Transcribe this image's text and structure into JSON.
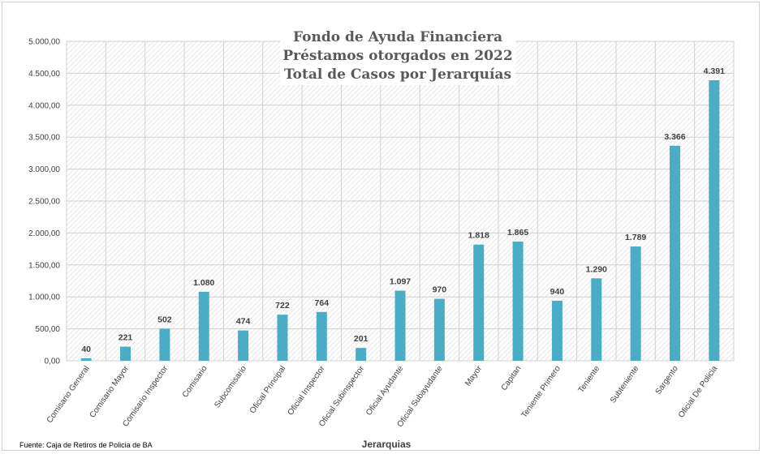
{
  "chart_data": {
    "type": "bar",
    "title_lines": [
      "Fondo de Ayuda Financiera",
      "Préstamos otorgados en 2022",
      "Total de Casos por Jerarquías"
    ],
    "xlabel": "Jerarquias",
    "ylabel": "",
    "source": "Fuente: Caja de Retiros de Policia de BA",
    "categories": [
      "Comisario General",
      "Comisario Mayor",
      "Comisario Inspector",
      "Comisario",
      "Subcomisario",
      "Oficial Principal",
      "Oficial Inspector",
      "Oficial Subinspector",
      "Oficial Ayudante",
      "Oficial Subayudante",
      "Mayor",
      "Capitan",
      "Teniente Primero",
      "Teniente",
      "Subteniente",
      "Sargento",
      "Oficial De Policia"
    ],
    "values": [
      40,
      221,
      502,
      1080,
      474,
      722,
      764,
      201,
      1097,
      970,
      1818,
      1865,
      940,
      1290,
      1789,
      3366,
      4391
    ],
    "value_labels": [
      "40",
      "221",
      "502",
      "1.080",
      "474",
      "722",
      "764",
      "201",
      "1.097",
      "970",
      "1.818",
      "1.865",
      "940",
      "1.290",
      "1.789",
      "3.366",
      "4.391"
    ],
    "ylim": [
      0,
      5000
    ],
    "yticks": [
      0,
      500,
      1000,
      1500,
      2000,
      2500,
      3000,
      3500,
      4000,
      4500,
      5000
    ],
    "ytick_labels": [
      "0,00",
      "500,00",
      "1.000,00",
      "1.500,00",
      "2.000,00",
      "2.500,00",
      "3.000,00",
      "3.500,00",
      "4.000,00",
      "4.500,00",
      "5.000,00"
    ],
    "grid": true,
    "legend": "none",
    "bar_color": "#4bacc6",
    "plot_background": "hatched-light-gray"
  }
}
